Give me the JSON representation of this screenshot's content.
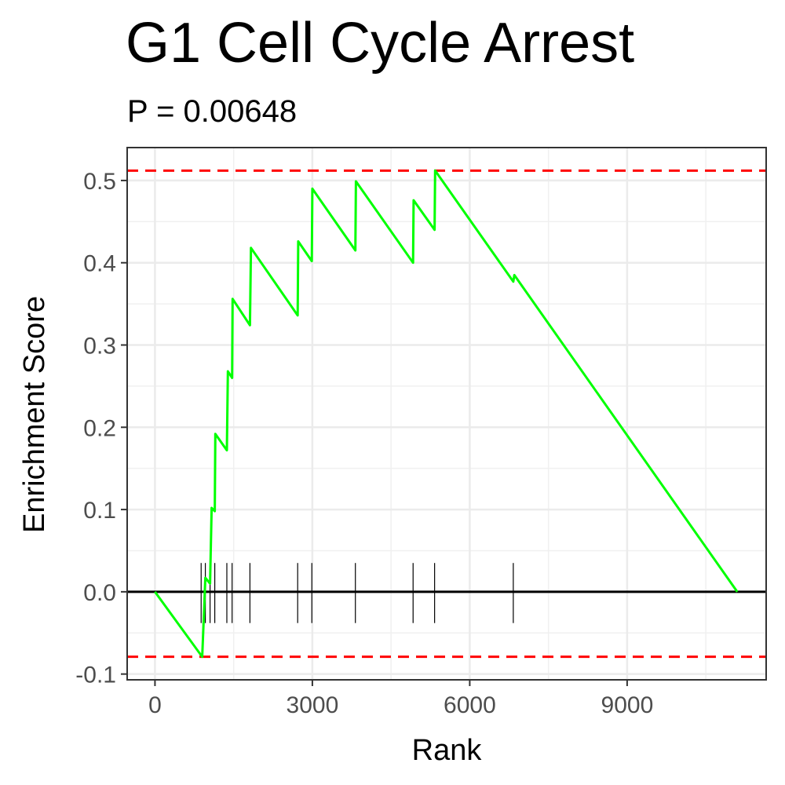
{
  "chart_data": {
    "type": "line",
    "title": "G1 Cell Cycle Arrest",
    "subtitle": "P = 0.00648",
    "xlabel": "Rank",
    "ylabel": "Enrichment Score",
    "xlim": [
      -530,
      11650
    ],
    "ylim": [
      -0.107,
      0.54
    ],
    "x_ticks": [
      0,
      3000,
      6000,
      9000
    ],
    "x_tick_labels": [
      "0",
      "3000",
      "6000",
      "9000"
    ],
    "y_ticks": [
      -0.1,
      0.0,
      0.1,
      0.2,
      0.3,
      0.4,
      0.5
    ],
    "y_tick_labels": [
      "-0.1",
      "0.0",
      "0.1",
      "0.2",
      "0.3",
      "0.4",
      "0.5"
    ],
    "grid": true,
    "series": [
      {
        "color": "#00ff00",
        "x": [
          0,
          900,
          900,
          960,
          960,
          1050,
          1050,
          1080,
          1080,
          1140,
          1140,
          1150,
          1150,
          1370,
          1370,
          1390,
          1390,
          1470,
          1470,
          1480,
          1480,
          1810,
          1810,
          1830,
          1830,
          2720,
          2720,
          2730,
          2730,
          2990,
          2990,
          3000,
          3000,
          3820,
          3820,
          3830,
          3830,
          4920,
          4920,
          4930,
          4930,
          5330,
          5330,
          5340,
          5340,
          6830,
          6830,
          6850,
          6850,
          11100
        ],
        "y": [
          0.0,
          -0.079,
          -0.079,
          0.017,
          0.017,
          0.01,
          0.01,
          0.102,
          0.102,
          0.098,
          0.098,
          0.192,
          0.192,
          0.172,
          0.172,
          0.268,
          0.268,
          0.26,
          0.26,
          0.356,
          0.356,
          0.324,
          0.324,
          0.418,
          0.418,
          0.336,
          0.336,
          0.426,
          0.426,
          0.402,
          0.402,
          0.49,
          0.49,
          0.415,
          0.415,
          0.499,
          0.499,
          0.4,
          0.4,
          0.476,
          0.476,
          0.44,
          0.44,
          0.512,
          0.512,
          0.377,
          0.377,
          0.385,
          0.385,
          0.0
        ]
      }
    ],
    "hits": [
      880,
      960,
      1050,
      1140,
      1370,
      1470,
      1810,
      2720,
      2990,
      3820,
      4920,
      5330,
      6830
    ],
    "reference_lines": [
      {
        "y": 0.512,
        "color": "#ff0000",
        "style": "dashed"
      },
      {
        "y": -0.079,
        "color": "#ff0000",
        "style": "dashed"
      },
      {
        "y": 0.0,
        "color": "#000000",
        "style": "solid"
      }
    ]
  }
}
